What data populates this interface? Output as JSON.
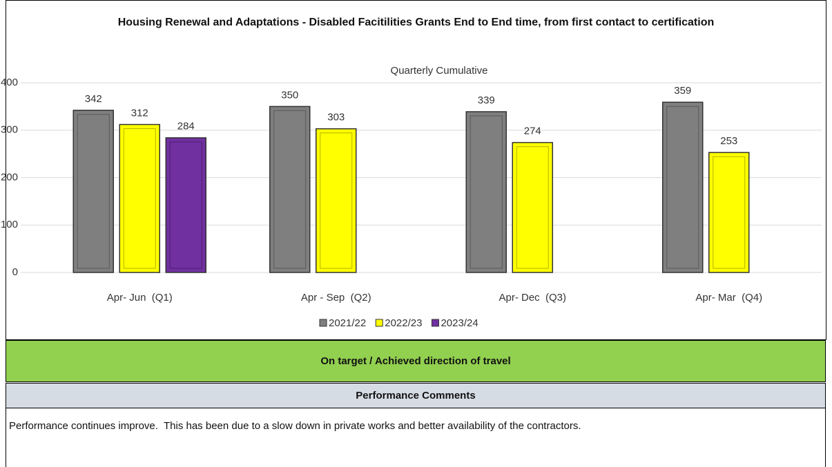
{
  "chart_data": {
    "type": "bar",
    "title": "Housing Renewal and Adaptations - Disabled Facitilities Grants End to End time, from first contact to certification",
    "subtitle": "Quarterly Cumulative",
    "categories": [
      "Apr- Jun  (Q1)",
      "Apr - Sep  (Q2)",
      "Apr- Dec  (Q3)",
      "Apr- Mar  (Q4)"
    ],
    "series": [
      {
        "name": "2021/22",
        "color": "#7f7f7f",
        "values": [
          342,
          350,
          339,
          359
        ]
      },
      {
        "name": "2022/23",
        "color": "#ffff00",
        "values": [
          312,
          303,
          274,
          253
        ]
      },
      {
        "name": "2023/24",
        "color": "#7030a0",
        "values": [
          284,
          null,
          null,
          null
        ]
      }
    ],
    "ylim": [
      0,
      400
    ],
    "yticks": [
      0,
      100,
      200,
      300,
      400
    ],
    "grid": true,
    "legend": "bottom"
  },
  "status": "On target / Achieved direction of travel",
  "comments": {
    "title": "Performance Comments",
    "text": "Performance continues improve.  This has been due to a slow down in private works and better availability of the contractors."
  }
}
